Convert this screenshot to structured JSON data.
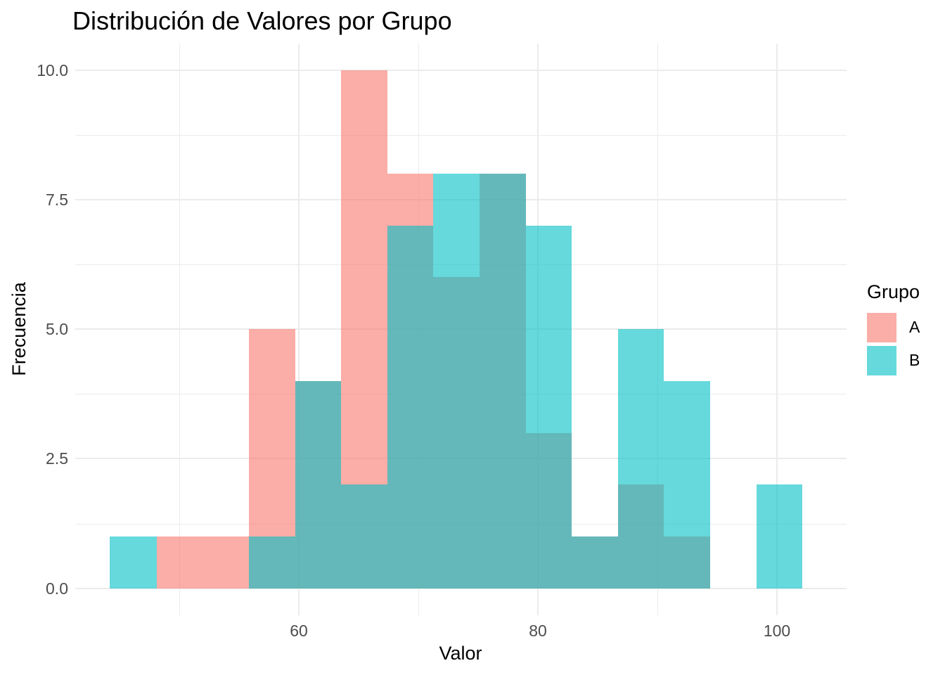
{
  "page": {
    "title": "Distribución de Valores por Grupo"
  },
  "chart_data": {
    "type": "histogram",
    "title": "Distribución de Valores por Grupo",
    "xlabel": "Valor",
    "ylabel": "Frecuencia",
    "legend_title": "Grupo",
    "legend_position": "right",
    "grid": true,
    "overlay_position": "identity",
    "xlim": [
      41.3,
      105.8
    ],
    "ylim": [
      -0.52,
      10.51
    ],
    "x_ticks": [
      {
        "value": 60,
        "label": "60"
      },
      {
        "value": 80,
        "label": "80"
      },
      {
        "value": 100,
        "label": "100"
      }
    ],
    "y_ticks": [
      {
        "value": 0,
        "label": "0.0"
      },
      {
        "value": 2.5,
        "label": "2.5"
      },
      {
        "value": 5,
        "label": "5.0"
      },
      {
        "value": 7.5,
        "label": "7.5"
      },
      {
        "value": 10,
        "label": "10.0"
      }
    ],
    "x_minor_gridlines": [
      50,
      70,
      90
    ],
    "y_minor_gridlines": [
      1.25,
      3.75,
      6.25,
      8.75
    ],
    "bin_edges": [
      44.2,
      48.1,
      51.9,
      55.8,
      59.7,
      63.5,
      67.4,
      71.2,
      75.1,
      79.0,
      82.8,
      86.7,
      90.5,
      94.4,
      98.3,
      102.1
    ],
    "series": [
      {
        "name": "A",
        "color": "#F8766D",
        "fill_alpha": 0.6,
        "counts": [
          0,
          1,
          1,
          5,
          4,
          10,
          8,
          6,
          8,
          3,
          1,
          2,
          1,
          0,
          0
        ]
      },
      {
        "name": "B",
        "color": "#00BFC4",
        "fill_alpha": 0.6,
        "counts": [
          1,
          0,
          0,
          1,
          4,
          2,
          7,
          8,
          8,
          7,
          1,
          5,
          4,
          0,
          2
        ]
      }
    ]
  },
  "colors": {
    "grid": "#EBEBEB",
    "tick_label": "#4D4D4D",
    "text": "#000000",
    "background": "#FFFFFF"
  }
}
